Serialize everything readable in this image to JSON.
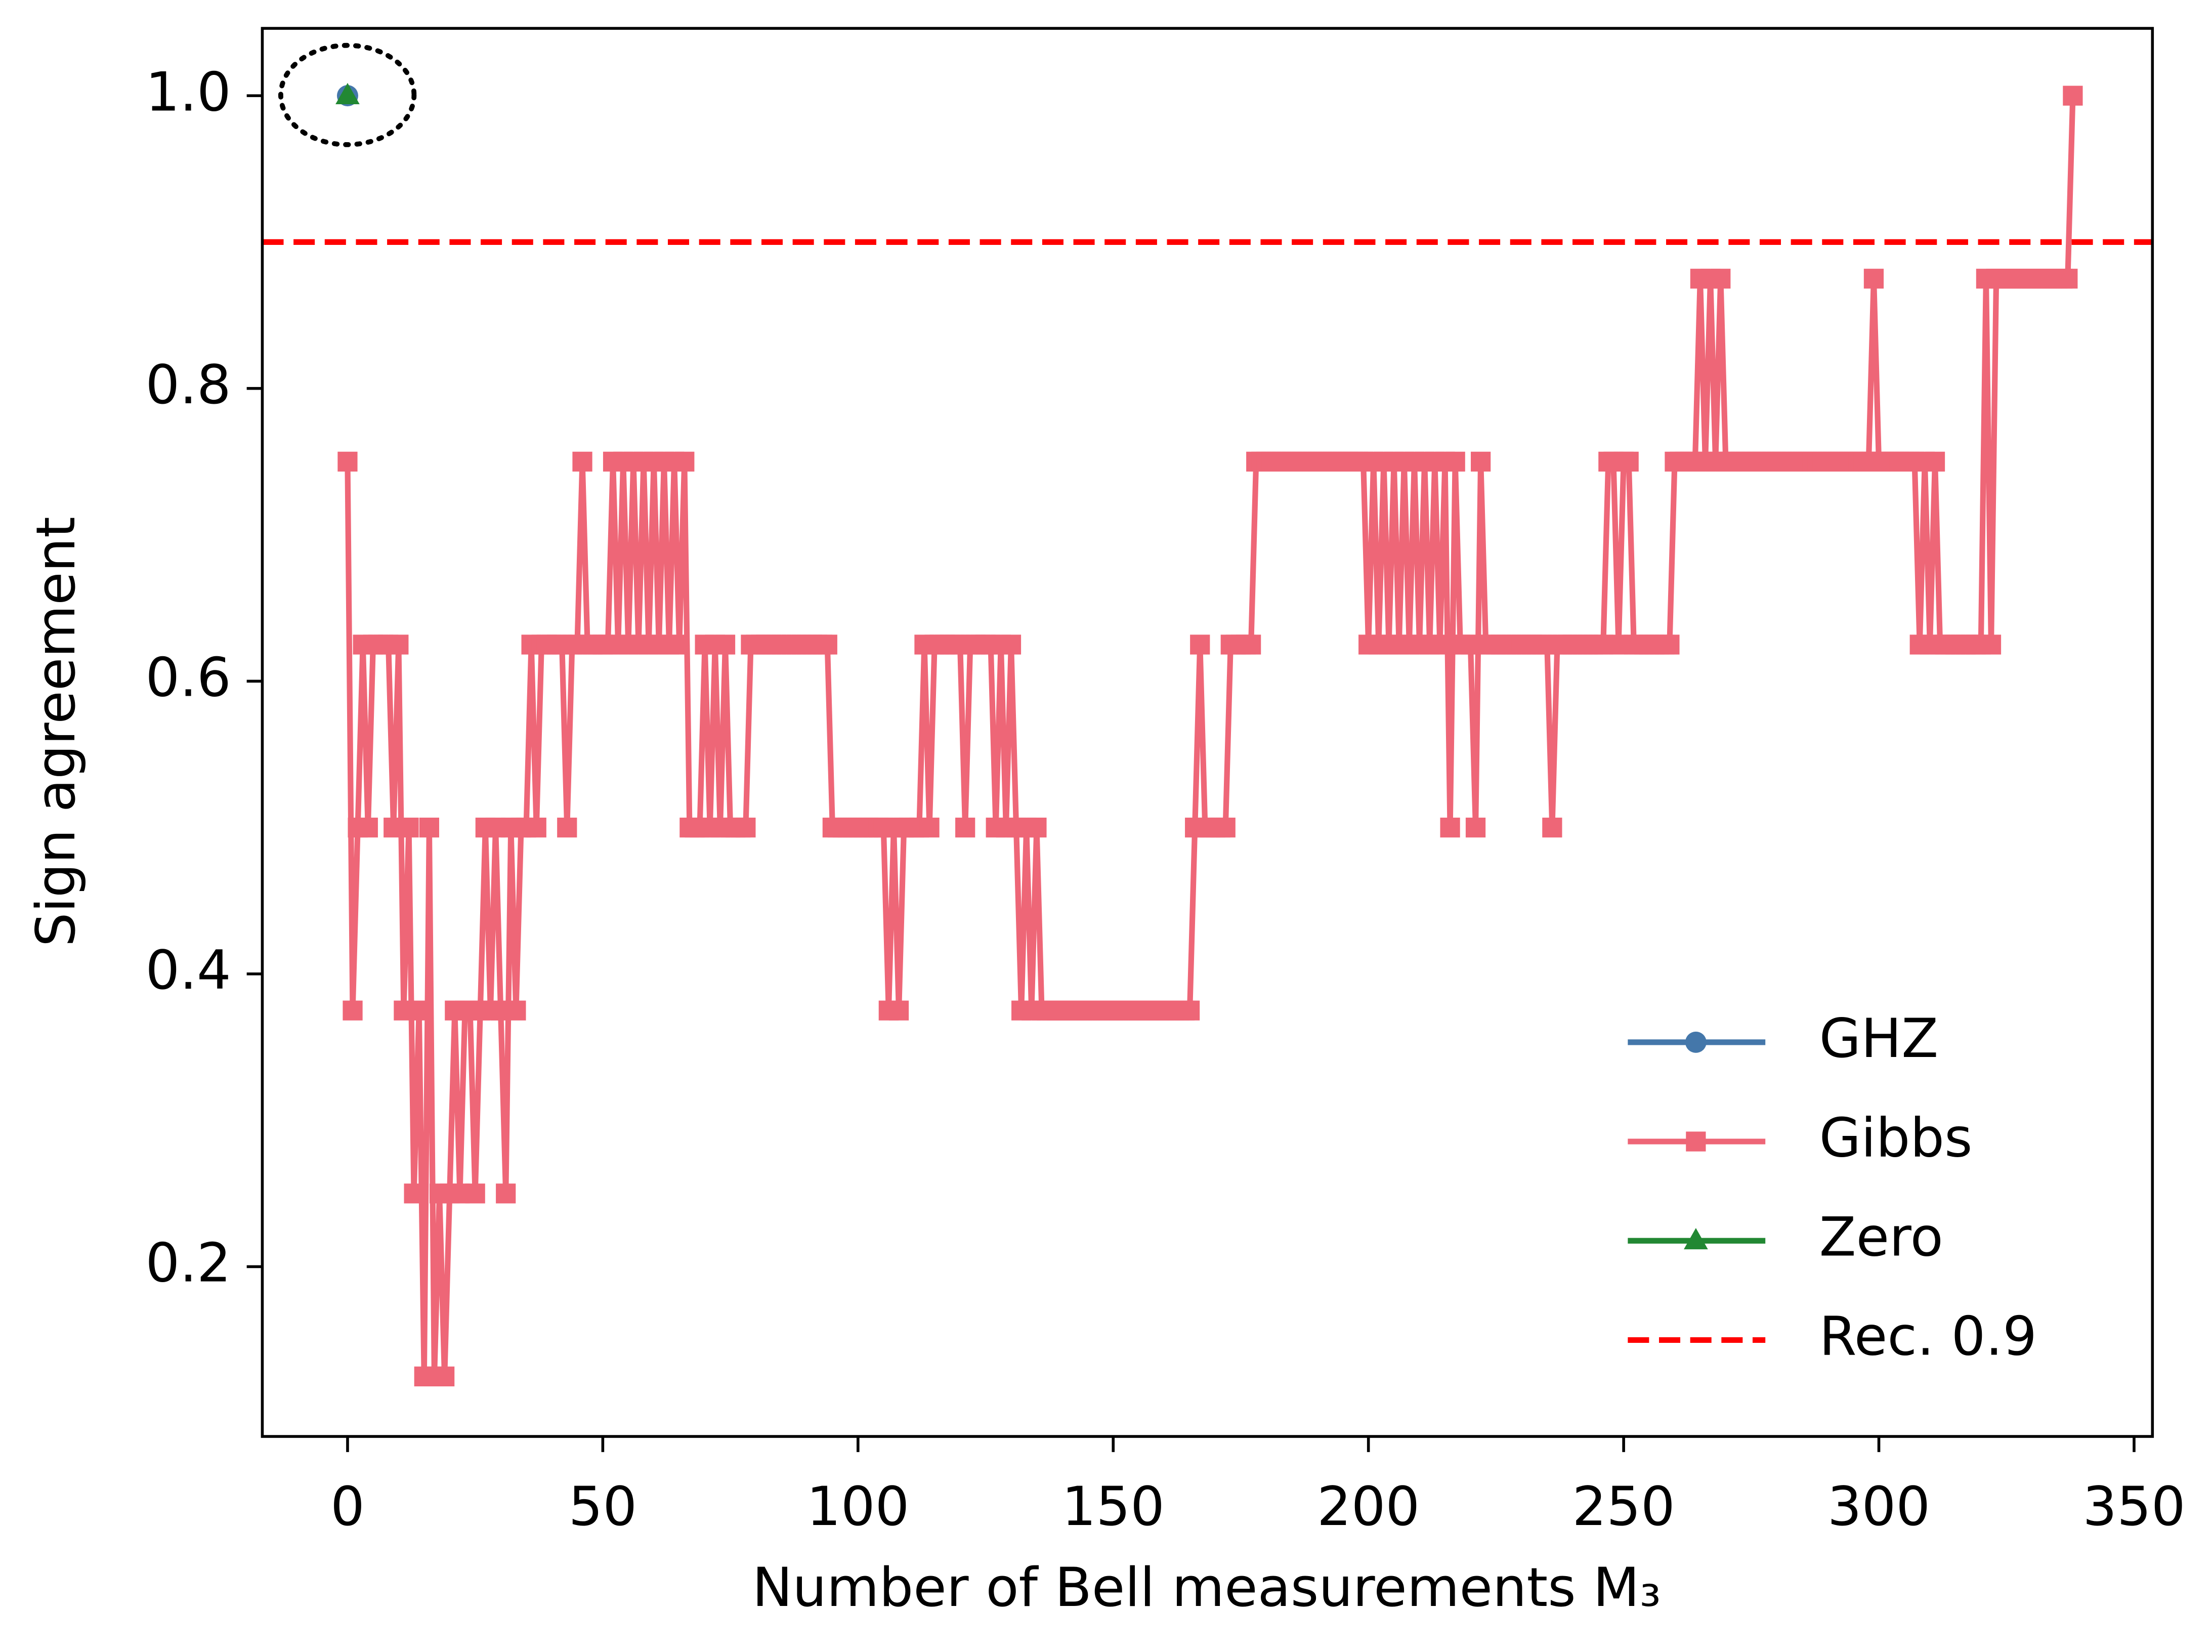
{
  "chart_data": {
    "type": "line",
    "xlabel": "Number of Bell measurements M₃",
    "ylabel": "Sign agreement",
    "xlim": [
      -16.7,
      353.6
    ],
    "ylim": [
      0.084,
      1.046
    ],
    "xticks": [
      0,
      50,
      100,
      150,
      200,
      250,
      300,
      350
    ],
    "yticks": [
      0.2,
      0.4,
      0.6,
      0.8,
      {
        "value": 1,
        "label": "1.0"
      }
    ],
    "grid": false,
    "legend": "lower right",
    "series": [
      {
        "name": "GHZ",
        "color": "#4477aa",
        "marker": "circle",
        "x": [
          0
        ],
        "values": [
          1
        ]
      },
      {
        "name": "Gibbs",
        "color": "#ee6677",
        "marker": "square",
        "x": [
          0,
          1,
          2,
          3,
          4,
          5,
          6,
          7,
          8,
          9,
          10,
          11,
          12,
          13,
          14,
          15,
          16,
          17,
          18,
          19,
          20,
          21,
          22,
          23,
          24,
          25,
          26,
          27,
          28,
          29,
          30,
          31,
          32,
          33,
          34,
          35,
          36,
          37,
          38,
          39,
          40,
          41,
          42,
          43,
          44,
          45,
          46,
          47,
          48,
          49,
          50,
          51,
          52,
          53,
          54,
          55,
          56,
          57,
          58,
          59,
          60,
          61,
          62,
          63,
          64,
          65,
          66,
          67,
          68,
          69,
          70,
          71,
          72,
          73,
          74,
          75,
          76,
          77,
          78,
          79,
          80,
          81,
          82,
          83,
          84,
          85,
          86,
          87,
          88,
          89,
          90,
          91,
          92,
          93,
          94,
          95,
          96,
          97,
          98,
          99,
          100,
          101,
          102,
          103,
          104,
          105,
          106,
          107,
          108,
          109,
          110,
          111,
          112,
          113,
          114,
          115,
          116,
          117,
          118,
          119,
          120,
          121,
          122,
          123,
          124,
          125,
          126,
          127,
          128,
          129,
          130,
          131,
          132,
          133,
          134,
          135,
          136,
          137,
          138,
          139,
          140,
          141,
          142,
          143,
          144,
          145,
          146,
          147,
          148,
          149,
          150,
          151,
          152,
          153,
          154,
          155,
          156,
          157,
          158,
          159,
          160,
          161,
          162,
          163,
          164,
          165,
          166,
          167,
          168,
          169,
          170,
          171,
          172,
          173,
          174,
          175,
          176,
          177,
          178,
          179,
          180,
          181,
          182,
          183,
          184,
          185,
          186,
          187,
          188,
          189,
          190,
          191,
          192,
          193,
          194,
          195,
          196,
          197,
          198,
          199,
          200,
          201,
          202,
          203,
          204,
          205,
          206,
          207,
          208,
          209,
          210,
          211,
          212,
          213,
          214,
          215,
          216,
          217,
          218,
          219,
          220,
          221,
          222,
          223,
          224,
          225,
          226,
          227,
          228,
          229,
          230,
          231,
          232,
          233,
          234,
          235,
          236,
          237,
          238,
          239,
          240,
          241,
          242,
          243,
          244,
          245,
          246,
          247,
          248,
          249,
          250,
          251,
          252,
          253,
          254,
          255,
          256,
          257,
          258,
          259,
          260,
          261,
          262,
          263,
          264,
          265,
          266,
          267,
          268,
          269,
          270,
          271,
          272,
          273,
          274,
          275,
          276,
          277,
          278,
          279,
          280,
          281,
          282,
          283,
          284,
          285,
          286,
          287,
          288,
          289,
          290,
          291,
          292,
          293,
          294,
          295,
          296,
          297,
          298,
          299,
          300,
          301,
          302,
          303,
          304,
          305,
          306,
          307,
          308,
          309,
          310,
          311,
          312,
          313,
          314,
          315,
          316,
          317,
          318,
          319,
          320,
          321,
          322,
          323,
          324,
          325,
          326,
          327,
          328,
          329,
          330,
          331,
          332,
          333,
          334,
          335,
          336,
          337,
          338
        ],
        "values": [
          0.75,
          0.375,
          0.5,
          0.625,
          0.5,
          0.625,
          0.625,
          0.625,
          0.625,
          0.5,
          0.625,
          0.375,
          0.5,
          0.25,
          0.375,
          0.125,
          0.5,
          0.125,
          0.25,
          0.125,
          0.25,
          0.375,
          0.25,
          0.375,
          0.375,
          0.25,
          0.375,
          0.5,
          0.375,
          0.5,
          0.375,
          0.25,
          0.5,
          0.375,
          0.5,
          0.5,
          0.625,
          0.5,
          0.625,
          0.625,
          0.625,
          0.625,
          0.625,
          0.5,
          0.625,
          0.625,
          0.75,
          0.625,
          0.625,
          0.625,
          0.625,
          0.625,
          0.75,
          0.625,
          0.75,
          0.625,
          0.75,
          0.625,
          0.75,
          0.625,
          0.75,
          0.625,
          0.75,
          0.625,
          0.75,
          0.625,
          0.75,
          0.5,
          0.5,
          0.5,
          0.625,
          0.5,
          0.625,
          0.5,
          0.625,
          0.5,
          0.5,
          0.5,
          0.5,
          0.625,
          0.625,
          0.625,
          0.625,
          0.625,
          0.625,
          0.625,
          0.625,
          0.625,
          0.625,
          0.625,
          0.625,
          0.625,
          0.625,
          0.625,
          0.625,
          0.5,
          0.5,
          0.5,
          0.5,
          0.5,
          0.5,
          0.5,
          0.5,
          0.5,
          0.5,
          0.5,
          0.375,
          0.5,
          0.375,
          0.5,
          0.5,
          0.5,
          0.5,
          0.625,
          0.5,
          0.625,
          0.625,
          0.625,
          0.625,
          0.625,
          0.625,
          0.5,
          0.625,
          0.625,
          0.625,
          0.625,
          0.625,
          0.5,
          0.625,
          0.5,
          0.625,
          0.5,
          0.375,
          0.5,
          0.375,
          0.5,
          0.375,
          0.375,
          0.375,
          0.375,
          0.375,
          0.375,
          0.375,
          0.375,
          0.375,
          0.375,
          0.375,
          0.375,
          0.375,
          0.375,
          0.375,
          0.375,
          0.375,
          0.375,
          0.375,
          0.375,
          0.375,
          0.375,
          0.375,
          0.375,
          0.375,
          0.375,
          0.375,
          0.375,
          0.375,
          0.375,
          0.5,
          0.625,
          0.5,
          0.5,
          0.5,
          0.5,
          0.5,
          0.625,
          0.625,
          0.625,
          0.625,
          0.625,
          0.75,
          0.75,
          0.75,
          0.75,
          0.75,
          0.75,
          0.75,
          0.75,
          0.75,
          0.75,
          0.75,
          0.75,
          0.75,
          0.75,
          0.75,
          0.75,
          0.75,
          0.75,
          0.75,
          0.75,
          0.75,
          0.75,
          0.625,
          0.75,
          0.625,
          0.75,
          0.625,
          0.75,
          0.625,
          0.75,
          0.625,
          0.75,
          0.625,
          0.75,
          0.625,
          0.75,
          0.625,
          0.75,
          0.5,
          0.75,
          0.625,
          0.625,
          0.625,
          0.5,
          0.75,
          0.625,
          0.625,
          0.625,
          0.625,
          0.625,
          0.625,
          0.625,
          0.625,
          0.625,
          0.625,
          0.625,
          0.625,
          0.625,
          0.5,
          0.625,
          0.625,
          0.625,
          0.625,
          0.625,
          0.625,
          0.625,
          0.625,
          0.625,
          0.625,
          0.75,
          0.75,
          0.625,
          0.75,
          0.75,
          0.625,
          0.625,
          0.625,
          0.625,
          0.625,
          0.625,
          0.625,
          0.625,
          0.75,
          0.75,
          0.75,
          0.75,
          0.75,
          0.875,
          0.75,
          0.875,
          0.75,
          0.875,
          0.75,
          0.75,
          0.75,
          0.75,
          0.75,
          0.75,
          0.75,
          0.75,
          0.75,
          0.75,
          0.75,
          0.75,
          0.75,
          0.75,
          0.75,
          0.75,
          0.75,
          0.75,
          0.75,
          0.75,
          0.75,
          0.75,
          0.75,
          0.75,
          0.75,
          0.75,
          0.75,
          0.75,
          0.75,
          0.875,
          0.75,
          0.75,
          0.75,
          0.75,
          0.75,
          0.75,
          0.75,
          0.75,
          0.625,
          0.75,
          0.625,
          0.75,
          0.625,
          0.625,
          0.625,
          0.625,
          0.625,
          0.625,
          0.625,
          0.625,
          0.625,
          0.875,
          0.625,
          0.875,
          0.875,
          0.875,
          0.875,
          0.875,
          0.875,
          0.875,
          0.875,
          0.875,
          0.875,
          0.875,
          0.875,
          0.875,
          0.875,
          0.875,
          1
        ]
      },
      {
        "name": "Zero",
        "color": "#228833",
        "marker": "triangle",
        "x": [
          0
        ],
        "values": [
          1
        ]
      }
    ],
    "hline": {
      "name": "Rec. 0.9",
      "value": 0.9,
      "color": "#ff0000"
    }
  }
}
